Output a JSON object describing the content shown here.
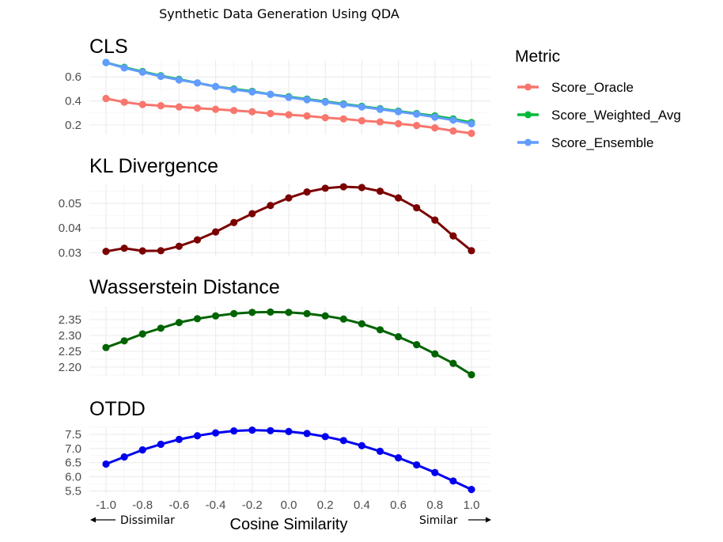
{
  "suptitle": "Synthetic Data Generation Using QDA",
  "xlabel": "Cosine Similarity",
  "x_left_label": "Dissimilar",
  "x_right_label": "Similar",
  "legend": {
    "title": "Metric",
    "items": [
      {
        "label": "Score_Oracle",
        "color": "#f8766d"
      },
      {
        "label": "Score_Weighted_Avg",
        "color": "#00ba38"
      },
      {
        "label": "Score_Ensemble",
        "color": "#619cff"
      }
    ]
  },
  "chart_data": [
    {
      "type": "line",
      "title": "CLS",
      "xlabel": "Cosine Similarity",
      "ylabel": "",
      "xlim": [
        -1.0,
        1.0
      ],
      "ylim": [
        0.12,
        0.74
      ],
      "x": [
        -1.0,
        -0.9,
        -0.8,
        -0.7,
        -0.6,
        -0.5,
        -0.4,
        -0.3,
        -0.2,
        -0.1,
        0.0,
        0.1,
        0.2,
        0.3,
        0.4,
        0.5,
        0.6,
        0.7,
        0.8,
        0.9,
        1.0
      ],
      "x_ticks": [
        "-1.0",
        "-0.8",
        "-0.6",
        "-0.4",
        "-0.2",
        "0.0",
        "0.2",
        "0.4",
        "0.6",
        "0.8",
        "1.0"
      ],
      "y_ticks": [
        0.2,
        0.4,
        0.6
      ],
      "y_tick_labels": [
        "0.2",
        "0.4",
        "0.6"
      ],
      "series": [
        {
          "name": "Score_Oracle",
          "color": "#f8766d",
          "values": [
            0.42,
            0.39,
            0.37,
            0.36,
            0.35,
            0.34,
            0.33,
            0.32,
            0.31,
            0.295,
            0.285,
            0.275,
            0.26,
            0.25,
            0.235,
            0.225,
            0.21,
            0.195,
            0.175,
            0.15,
            0.13
          ]
        },
        {
          "name": "Score_Weighted_Avg",
          "color": "#00ba38",
          "values": [
            0.72,
            0.68,
            0.645,
            0.61,
            0.58,
            0.55,
            0.52,
            0.5,
            0.48,
            0.455,
            0.435,
            0.415,
            0.395,
            0.375,
            0.355,
            0.335,
            0.315,
            0.295,
            0.275,
            0.25,
            0.22
          ]
        },
        {
          "name": "Score_Ensemble",
          "color": "#619cff",
          "values": [
            0.72,
            0.675,
            0.64,
            0.605,
            0.575,
            0.55,
            0.52,
            0.495,
            0.475,
            0.455,
            0.43,
            0.41,
            0.39,
            0.37,
            0.35,
            0.33,
            0.31,
            0.29,
            0.265,
            0.24,
            0.21
          ]
        }
      ]
    },
    {
      "type": "line",
      "title": "KL Divergence",
      "xlabel": "Cosine Similarity",
      "ylabel": "",
      "xlim": [
        -1.0,
        1.0
      ],
      "ylim": [
        0.0285,
        0.058
      ],
      "x": [
        -1.0,
        -0.9,
        -0.8,
        -0.7,
        -0.6,
        -0.5,
        -0.4,
        -0.3,
        -0.2,
        -0.1,
        0.0,
        0.1,
        0.2,
        0.3,
        0.4,
        0.5,
        0.6,
        0.7,
        0.8,
        0.9,
        1.0
      ],
      "x_ticks": [
        "-1.0",
        "-0.8",
        "-0.6",
        "-0.4",
        "-0.2",
        "0.0",
        "0.2",
        "0.4",
        "0.6",
        "0.8",
        "1.0"
      ],
      "y_ticks": [
        0.03,
        0.04,
        0.05
      ],
      "y_tick_labels": [
        "0.03",
        "0.04",
        "0.05"
      ],
      "series": [
        {
          "name": "KL Divergence",
          "color": "#7b0000",
          "values": [
            0.0305,
            0.0318,
            0.0307,
            0.0308,
            0.0326,
            0.0352,
            0.0384,
            0.0422,
            0.0458,
            0.0491,
            0.0522,
            0.0546,
            0.0561,
            0.0567,
            0.0564,
            0.0549,
            0.0522,
            0.0482,
            0.0432,
            0.0368,
            0.0308
          ]
        }
      ]
    },
    {
      "type": "line",
      "title": "Wasserstein Distance",
      "xlabel": "Cosine Similarity",
      "ylabel": "",
      "xlim": [
        -1.0,
        1.0
      ],
      "ylim": [
        2.17,
        2.39
      ],
      "x": [
        -1.0,
        -0.9,
        -0.8,
        -0.7,
        -0.6,
        -0.5,
        -0.4,
        -0.3,
        -0.2,
        -0.1,
        0.0,
        0.1,
        0.2,
        0.3,
        0.4,
        0.5,
        0.6,
        0.7,
        0.8,
        0.9,
        1.0
      ],
      "x_ticks": [
        "-1.0",
        "-0.8",
        "-0.6",
        "-0.4",
        "-0.2",
        "0.0",
        "0.2",
        "0.4",
        "0.6",
        "0.8",
        "1.0"
      ],
      "y_ticks": [
        2.2,
        2.25,
        2.3,
        2.35
      ],
      "y_tick_labels": [
        "2.20",
        "2.25",
        "2.30",
        "2.35"
      ],
      "series": [
        {
          "name": "Wasserstein Distance",
          "color": "#006400",
          "values": [
            2.262,
            2.283,
            2.305,
            2.323,
            2.341,
            2.353,
            2.362,
            2.369,
            2.373,
            2.374,
            2.373,
            2.369,
            2.362,
            2.352,
            2.337,
            2.318,
            2.296,
            2.271,
            2.242,
            2.212,
            2.176
          ]
        }
      ]
    },
    {
      "type": "line",
      "title": "OTDD",
      "xlabel": "Cosine Similarity",
      "ylabel": "",
      "xlim": [
        -1.0,
        1.0
      ],
      "ylim": [
        5.4,
        7.75
      ],
      "x": [
        -1.0,
        -0.9,
        -0.8,
        -0.7,
        -0.6,
        -0.5,
        -0.4,
        -0.3,
        -0.2,
        -0.1,
        0.0,
        0.1,
        0.2,
        0.3,
        0.4,
        0.5,
        0.6,
        0.7,
        0.8,
        0.9,
        1.0
      ],
      "x_ticks": [
        "-1.0",
        "-0.8",
        "-0.6",
        "-0.4",
        "-0.2",
        "0.0",
        "0.2",
        "0.4",
        "0.6",
        "0.8",
        "1.0"
      ],
      "y_ticks": [
        5.5,
        6.0,
        6.5,
        7.0,
        7.5
      ],
      "y_tick_labels": [
        "5.5",
        "6.0",
        "6.5",
        "7.0",
        "7.5"
      ],
      "series": [
        {
          "name": "OTDD",
          "color": "#0000ee",
          "values": [
            6.45,
            6.7,
            6.95,
            7.15,
            7.32,
            7.45,
            7.55,
            7.62,
            7.65,
            7.63,
            7.6,
            7.53,
            7.42,
            7.28,
            7.1,
            6.9,
            6.67,
            6.42,
            6.15,
            5.85,
            5.55
          ]
        }
      ]
    }
  ]
}
